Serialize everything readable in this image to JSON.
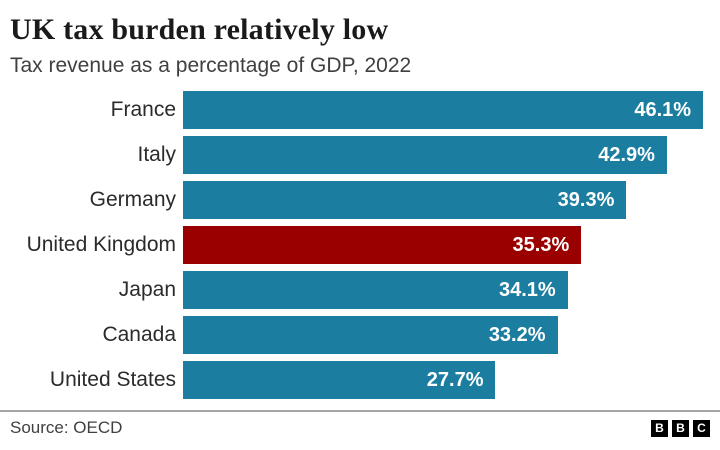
{
  "header": {
    "title": "UK tax burden relatively low",
    "subtitle": "Tax revenue as a percentage of GDP, 2022"
  },
  "chart_data": {
    "type": "bar",
    "orientation": "horizontal",
    "title": "UK tax burden relatively low",
    "subtitle": "Tax revenue as a percentage of GDP, 2022",
    "categories": [
      "France",
      "Italy",
      "Germany",
      "United Kingdom",
      "Japan",
      "Canada",
      "United States"
    ],
    "values": [
      46.1,
      42.9,
      39.3,
      35.3,
      34.1,
      33.2,
      27.7
    ],
    "value_labels": [
      "46.1%",
      "42.9%",
      "39.3%",
      "35.3%",
      "34.1%",
      "33.2%",
      "27.7%"
    ],
    "highlight_category": "United Kingdom",
    "bar_color": "#1b7ea0",
    "highlight_color": "#9a0000",
    "value_label_color": "#ffffff",
    "xlim": [
      0,
      47.6
    ],
    "grid": false,
    "legend": false
  },
  "footer": {
    "source": "Source: OECD",
    "logo_letters": [
      "B",
      "B",
      "C"
    ]
  }
}
